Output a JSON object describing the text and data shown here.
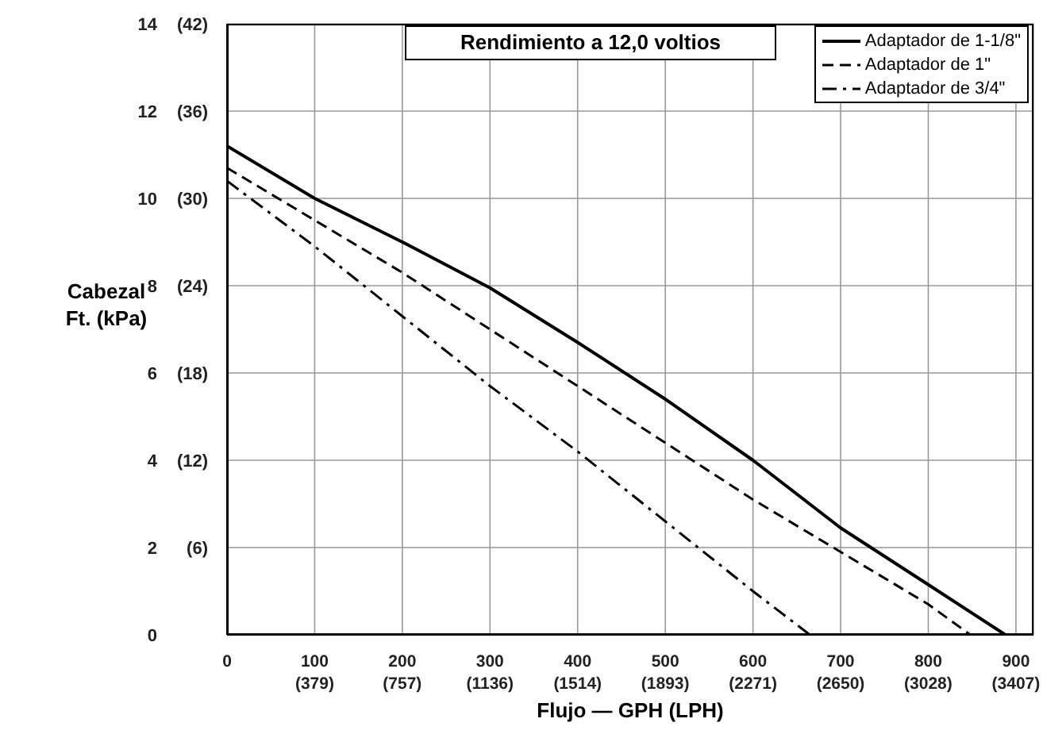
{
  "chart_data": {
    "type": "line",
    "title": "Rendimiento a 12,0 voltios",
    "xlabel": "Flujo — GPH (LPH)",
    "ylabel": "Cabezal\nFt. (kPa)",
    "x": [
      0,
      100,
      200,
      300,
      400,
      500,
      600,
      700,
      800,
      888
    ],
    "series": [
      {
        "name": "Adaptador de 1-1/8\"",
        "color": "#000000",
        "line_style": "solid",
        "values": [
          11.2,
          10.0,
          9.0,
          7.95,
          6.7,
          5.4,
          4.0,
          2.45,
          1.15,
          0
        ]
      },
      {
        "name": "Adaptador de 1\"",
        "color": "#000000",
        "line_style": "dashed",
        "x": [
          0,
          100,
          200,
          300,
          400,
          500,
          600,
          700,
          800,
          848
        ],
        "values": [
          10.7,
          9.5,
          8.3,
          7.0,
          5.7,
          4.4,
          3.1,
          1.9,
          0.7,
          0
        ]
      },
      {
        "name": "Adaptador de 3/4\"",
        "color": "#000000",
        "line_style": "dashdot",
        "x": [
          0,
          100,
          200,
          300,
          400,
          500,
          600,
          665
        ],
        "values": [
          10.4,
          8.9,
          7.3,
          5.7,
          4.2,
          2.6,
          1.0,
          0
        ]
      }
    ],
    "xlim": [
      0,
      920
    ],
    "xticks": [
      0,
      100,
      200,
      300,
      400,
      500,
      600,
      700,
      800,
      900
    ],
    "x2lim": [
      0,
      3483
    ],
    "x2ticks": [
      {
        "value": 379,
        "label": "(379)"
      },
      {
        "value": 757,
        "label": "(757)"
      },
      {
        "value": 1136,
        "label": "(1136)"
      },
      {
        "value": 1514,
        "label": "(1514)"
      },
      {
        "value": 1893,
        "label": "(1893)"
      },
      {
        "value": 2271,
        "label": "(2271)"
      },
      {
        "value": 2650,
        "label": "(2650)"
      },
      {
        "value": 3028,
        "label": "(3028)"
      },
      {
        "value": 3407,
        "label": "(3407)"
      }
    ],
    "ylim": [
      0,
      14
    ],
    "yticks": [
      0,
      2,
      4,
      6,
      8,
      10,
      12,
      14
    ],
    "y2lim": [
      0,
      42
    ],
    "y2ticks": [
      {
        "value": 6,
        "label": "(6)"
      },
      {
        "value": 12,
        "label": "(12)"
      },
      {
        "value": 18,
        "label": "(18)"
      },
      {
        "value": 24,
        "label": "(24)"
      },
      {
        "value": 30,
        "label": "(30)"
      },
      {
        "value": 36,
        "label": "(36)"
      },
      {
        "value": 42,
        "label": "(42)"
      }
    ],
    "grid": true,
    "legend": "top right"
  }
}
